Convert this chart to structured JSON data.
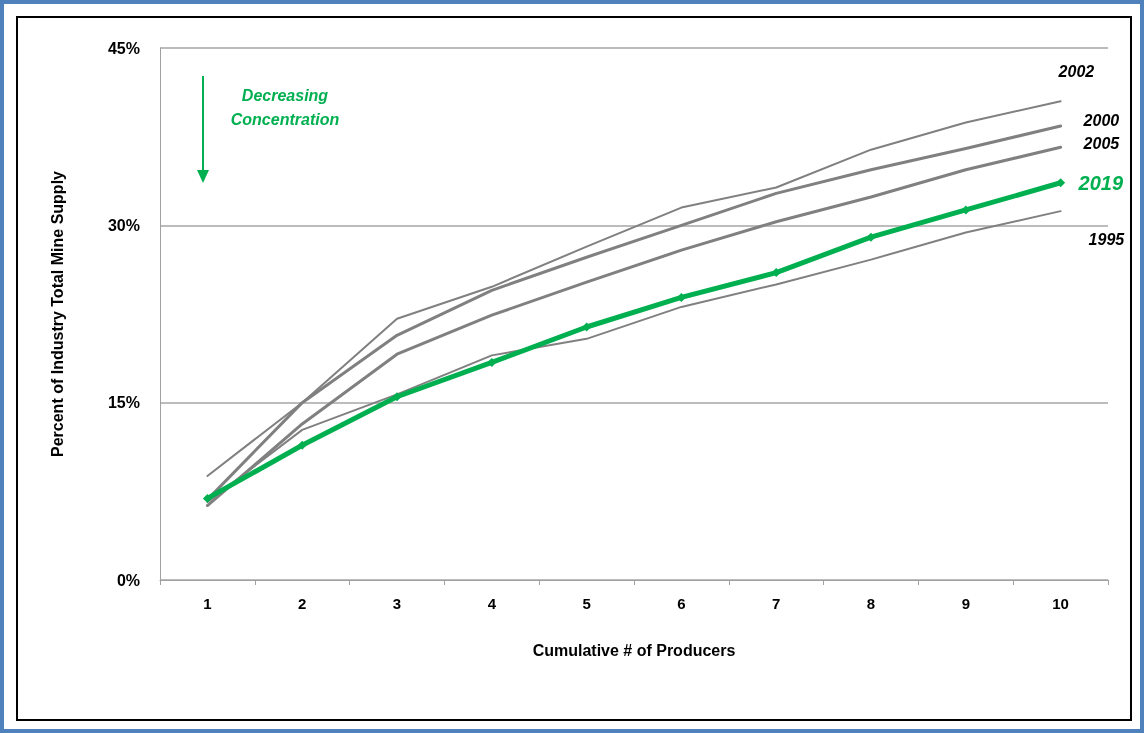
{
  "chart_data": {
    "type": "line",
    "xlabel": "Cumulative # of Producers",
    "ylabel": "Percent of Industry Total Mine Supply",
    "categories": [
      "1",
      "2",
      "3",
      "4",
      "5",
      "6",
      "7",
      "8",
      "9",
      "10"
    ],
    "series": [
      {
        "name": "2002",
        "color": "#808080",
        "marker": "none",
        "values": [
          8.8,
          15.0,
          22.1,
          24.8,
          28.2,
          31.5,
          33.2,
          36.4,
          38.7,
          40.5
        ]
      },
      {
        "name": "2000",
        "color": "#808080",
        "marker": "none",
        "values": [
          6.8,
          15.0,
          20.7,
          24.5,
          27.3,
          30.0,
          32.7,
          34.7,
          36.5,
          38.4
        ]
      },
      {
        "name": "2005",
        "color": "#808080",
        "marker": "none",
        "values": [
          6.3,
          13.2,
          19.1,
          22.4,
          25.2,
          27.9,
          30.3,
          32.4,
          34.7,
          36.6
        ]
      },
      {
        "name": "2019",
        "color": "#00b050",
        "marker": "diamond",
        "values": [
          6.9,
          11.4,
          15.5,
          18.4,
          21.4,
          23.9,
          26.0,
          29.0,
          31.3,
          33.6
        ]
      },
      {
        "name": "1995",
        "color": "#808080",
        "marker": "none",
        "values": [
          6.6,
          12.7,
          15.7,
          19.0,
          20.4,
          23.1,
          25.0,
          27.1,
          29.4,
          31.2
        ]
      }
    ],
    "ylim": [
      0,
      45
    ],
    "yticks": [
      {
        "value": 0,
        "label": "0%"
      },
      {
        "value": 15,
        "label": "15%"
      },
      {
        "value": 30,
        "label": "30%"
      },
      {
        "value": 45,
        "label": "45%"
      }
    ],
    "grid": "y",
    "legend": false,
    "line_style": "solid",
    "annotations": [
      "Decreasing Concentration"
    ]
  }
}
